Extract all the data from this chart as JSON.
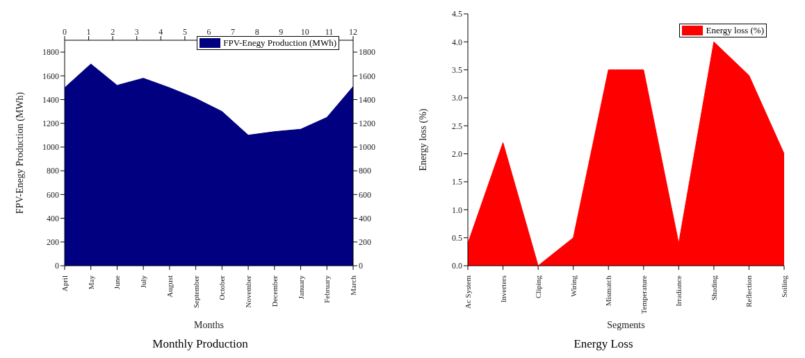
{
  "chart_data": [
    {
      "type": "area",
      "title": "Monthly Production",
      "xlabel": "Months",
      "ylabel": "FPV-Enegy Production (MWh)",
      "categories": [
        "April",
        "May",
        "June",
        "July",
        "August",
        "September",
        "October",
        "November",
        "December",
        "January",
        "February",
        "March"
      ],
      "series": [
        {
          "name": "FPV-Enegy Production (MWh)",
          "color": "#000080",
          "values": [
            1500,
            1700,
            1520,
            1580,
            1500,
            1410,
            1300,
            1100,
            1130,
            1150,
            1250,
            1510
          ]
        }
      ],
      "ylim": [
        0,
        1900
      ],
      "yticks": [
        0,
        200,
        400,
        600,
        800,
        1000,
        1200,
        1400,
        1600,
        1800
      ],
      "y2lim": [
        0,
        1900
      ],
      "y2ticks": [
        0,
        200,
        400,
        600,
        800,
        1000,
        1200,
        1400,
        1600,
        1800
      ],
      "x2lim": [
        0,
        12
      ],
      "x2ticks": [
        0,
        1,
        2,
        3,
        4,
        5,
        6,
        7,
        8,
        9,
        10,
        11,
        12
      ],
      "legend": "top right",
      "grid": false
    },
    {
      "type": "area",
      "title": "Energy Loss",
      "xlabel": "Segments",
      "ylabel": "Energy loss (%)",
      "categories": [
        "Ac System",
        "Inverters",
        "Cliping",
        "Wiring",
        "Mismatch",
        "Temperature",
        "Irradiance",
        "Shading",
        "Reflection",
        "Soiling"
      ],
      "series": [
        {
          "name": "Energy loss (%)",
          "color": "#ff0000",
          "values": [
            0.4,
            2.2,
            0.0,
            0.5,
            3.5,
            3.5,
            0.4,
            4.0,
            3.4,
            2.0
          ]
        }
      ],
      "ylim": [
        0,
        4.5
      ],
      "yticks": [
        {
          "value": 0,
          "label": "0.0"
        },
        {
          "value": 0.5,
          "label": "0.5"
        },
        {
          "value": 1,
          "label": "1.0"
        },
        {
          "value": 1.5,
          "label": "1.5"
        },
        {
          "value": 2,
          "label": "2.0"
        },
        {
          "value": 2.5,
          "label": "2.5"
        },
        {
          "value": 3,
          "label": "3.0"
        },
        {
          "value": 3.5,
          "label": "3.5"
        },
        {
          "value": 4,
          "label": "4.0"
        },
        {
          "value": 4.5,
          "label": "4.5"
        }
      ],
      "legend": "top right",
      "grid": false
    }
  ]
}
